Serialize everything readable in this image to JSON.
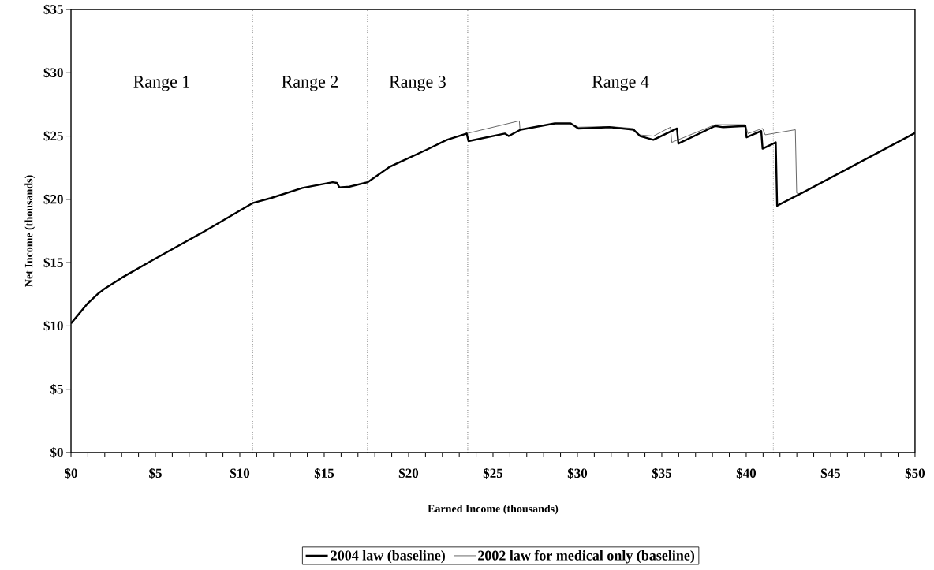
{
  "chart_data": {
    "type": "line",
    "xlabel": "Earned Income (thousands)",
    "ylabel": "Net Income (thousands)",
    "xlim": [
      0,
      50
    ],
    "ylim": [
      0,
      35
    ],
    "xticks": [
      {
        "value": 0,
        "label": "$0"
      },
      {
        "value": 1,
        "label": null
      },
      {
        "value": 2,
        "label": null
      },
      {
        "value": 3,
        "label": null
      },
      {
        "value": 4,
        "label": null
      },
      {
        "value": 5,
        "label": "$5"
      },
      {
        "value": 6,
        "label": null
      },
      {
        "value": 7,
        "label": null
      },
      {
        "value": 8,
        "label": null
      },
      {
        "value": 9,
        "label": null
      },
      {
        "value": 10,
        "label": "$10"
      },
      {
        "value": 11,
        "label": null
      },
      {
        "value": 12,
        "label": null
      },
      {
        "value": 13,
        "label": null
      },
      {
        "value": 14,
        "label": null
      },
      {
        "value": 15,
        "label": "$15"
      },
      {
        "value": 16,
        "label": null
      },
      {
        "value": 17,
        "label": null
      },
      {
        "value": 18,
        "label": null
      },
      {
        "value": 19,
        "label": null
      },
      {
        "value": 20,
        "label": "$20"
      },
      {
        "value": 21,
        "label": null
      },
      {
        "value": 22,
        "label": null
      },
      {
        "value": 23,
        "label": null
      },
      {
        "value": 24,
        "label": null
      },
      {
        "value": 25,
        "label": "$25"
      },
      {
        "value": 26,
        "label": null
      },
      {
        "value": 27,
        "label": null
      },
      {
        "value": 28,
        "label": null
      },
      {
        "value": 29,
        "label": null
      },
      {
        "value": 30,
        "label": "$30"
      },
      {
        "value": 31,
        "label": null
      },
      {
        "value": 32,
        "label": null
      },
      {
        "value": 33,
        "label": null
      },
      {
        "value": 34,
        "label": null
      },
      {
        "value": 35,
        "label": "$35"
      },
      {
        "value": 36,
        "label": null
      },
      {
        "value": 37,
        "label": null
      },
      {
        "value": 38,
        "label": null
      },
      {
        "value": 39,
        "label": null
      },
      {
        "value": 40,
        "label": "$40"
      },
      {
        "value": 41,
        "label": null
      },
      {
        "value": 42,
        "label": null
      },
      {
        "value": 43,
        "label": null
      },
      {
        "value": 44,
        "label": null
      },
      {
        "value": 45,
        "label": "$45"
      },
      {
        "value": 46,
        "label": null
      },
      {
        "value": 47,
        "label": null
      },
      {
        "value": 48,
        "label": null
      },
      {
        "value": 49,
        "label": null
      },
      {
        "value": 50,
        "label": "$50"
      }
    ],
    "yticks": [
      {
        "value": 0,
        "label": "$0"
      },
      {
        "value": 5,
        "label": "$5"
      },
      {
        "value": 10,
        "label": "$10"
      },
      {
        "value": 15,
        "label": "$15"
      },
      {
        "value": 20,
        "label": "$20"
      },
      {
        "value": 25,
        "label": "$25"
      },
      {
        "value": 30,
        "label": "$30"
      },
      {
        "value": 35,
        "label": "$35"
      }
    ],
    "marker": "none",
    "legend": "bottom",
    "grid": false,
    "series": [
      {
        "name": "2004 law (baseline)",
        "color": "#000000",
        "x": [
          0,
          0.5,
          1.0,
          1.56,
          1.95,
          3,
          4.83,
          7.94,
          10.75,
          11.84,
          13.71,
          15.5,
          15.75,
          15.9,
          16.5,
          17.57,
          18.85,
          21.03,
          22.27,
          23.44,
          23.55,
          25.7,
          25.93,
          26.63,
          28.66,
          29.6,
          30.06,
          31.93,
          33.33,
          33.72,
          34.5,
          35.9,
          35.98,
          38.16,
          38.63,
          39.95,
          40.02,
          40.89,
          40.97,
          41.75,
          41.83,
          43.15,
          50
        ],
        "values": [
          10.2,
          11.0,
          11.8,
          12.5,
          12.9,
          13.8,
          15.2,
          17.5,
          19.7,
          20.1,
          20.9,
          21.35,
          21.3,
          20.95,
          21.0,
          21.35,
          22.55,
          23.9,
          24.7,
          25.2,
          24.6,
          25.2,
          25.0,
          25.5,
          26.0,
          26.0,
          25.6,
          25.7,
          25.5,
          25.0,
          24.7,
          25.6,
          24.4,
          25.8,
          25.7,
          25.8,
          24.9,
          25.4,
          24.0,
          24.5,
          19.5,
          20.4,
          25.25
        ]
      },
      {
        "name": "2002 law for medical only (baseline)",
        "color": "#000000",
        "x": [
          0,
          0.5,
          1.0,
          1.56,
          1.95,
          3,
          4.83,
          7.94,
          10.75,
          11.84,
          13.71,
          15.5,
          15.75,
          15.9,
          16.5,
          17.57,
          18.85,
          21.03,
          22.27,
          23.44,
          26.56,
          26.6,
          28.66,
          29.6,
          30.06,
          31.93,
          33.33,
          33.6,
          34.5,
          35.51,
          35.59,
          38.16,
          39.95,
          40.1,
          40.97,
          41.12,
          42.91,
          42.99,
          43.15,
          50
        ],
        "values": [
          10.2,
          11.0,
          11.8,
          12.5,
          12.9,
          13.8,
          15.2,
          17.5,
          19.7,
          20.1,
          20.9,
          21.35,
          21.3,
          20.95,
          21.0,
          21.35,
          22.55,
          23.9,
          24.7,
          25.2,
          26.2,
          25.5,
          26.0,
          26.0,
          25.7,
          25.75,
          25.6,
          25.1,
          25.0,
          25.7,
          24.5,
          25.9,
          25.9,
          25.2,
          25.6,
          25.1,
          25.5,
          20.5,
          20.4,
          25.25
        ]
      }
    ],
    "ref_lines": [
      {
        "axis": "x",
        "value": 10.75,
        "line_style": "dotted"
      },
      {
        "axis": "x",
        "value": 17.57,
        "line_style": "dotted"
      },
      {
        "axis": "x",
        "value": 23.5,
        "line_style": "dotted"
      },
      {
        "axis": "x",
        "value": 41.6,
        "line_style": "dotted"
      }
    ],
    "annotations": [
      "Range 1",
      "Range 2",
      "Range 3",
      "Range 4"
    ]
  }
}
